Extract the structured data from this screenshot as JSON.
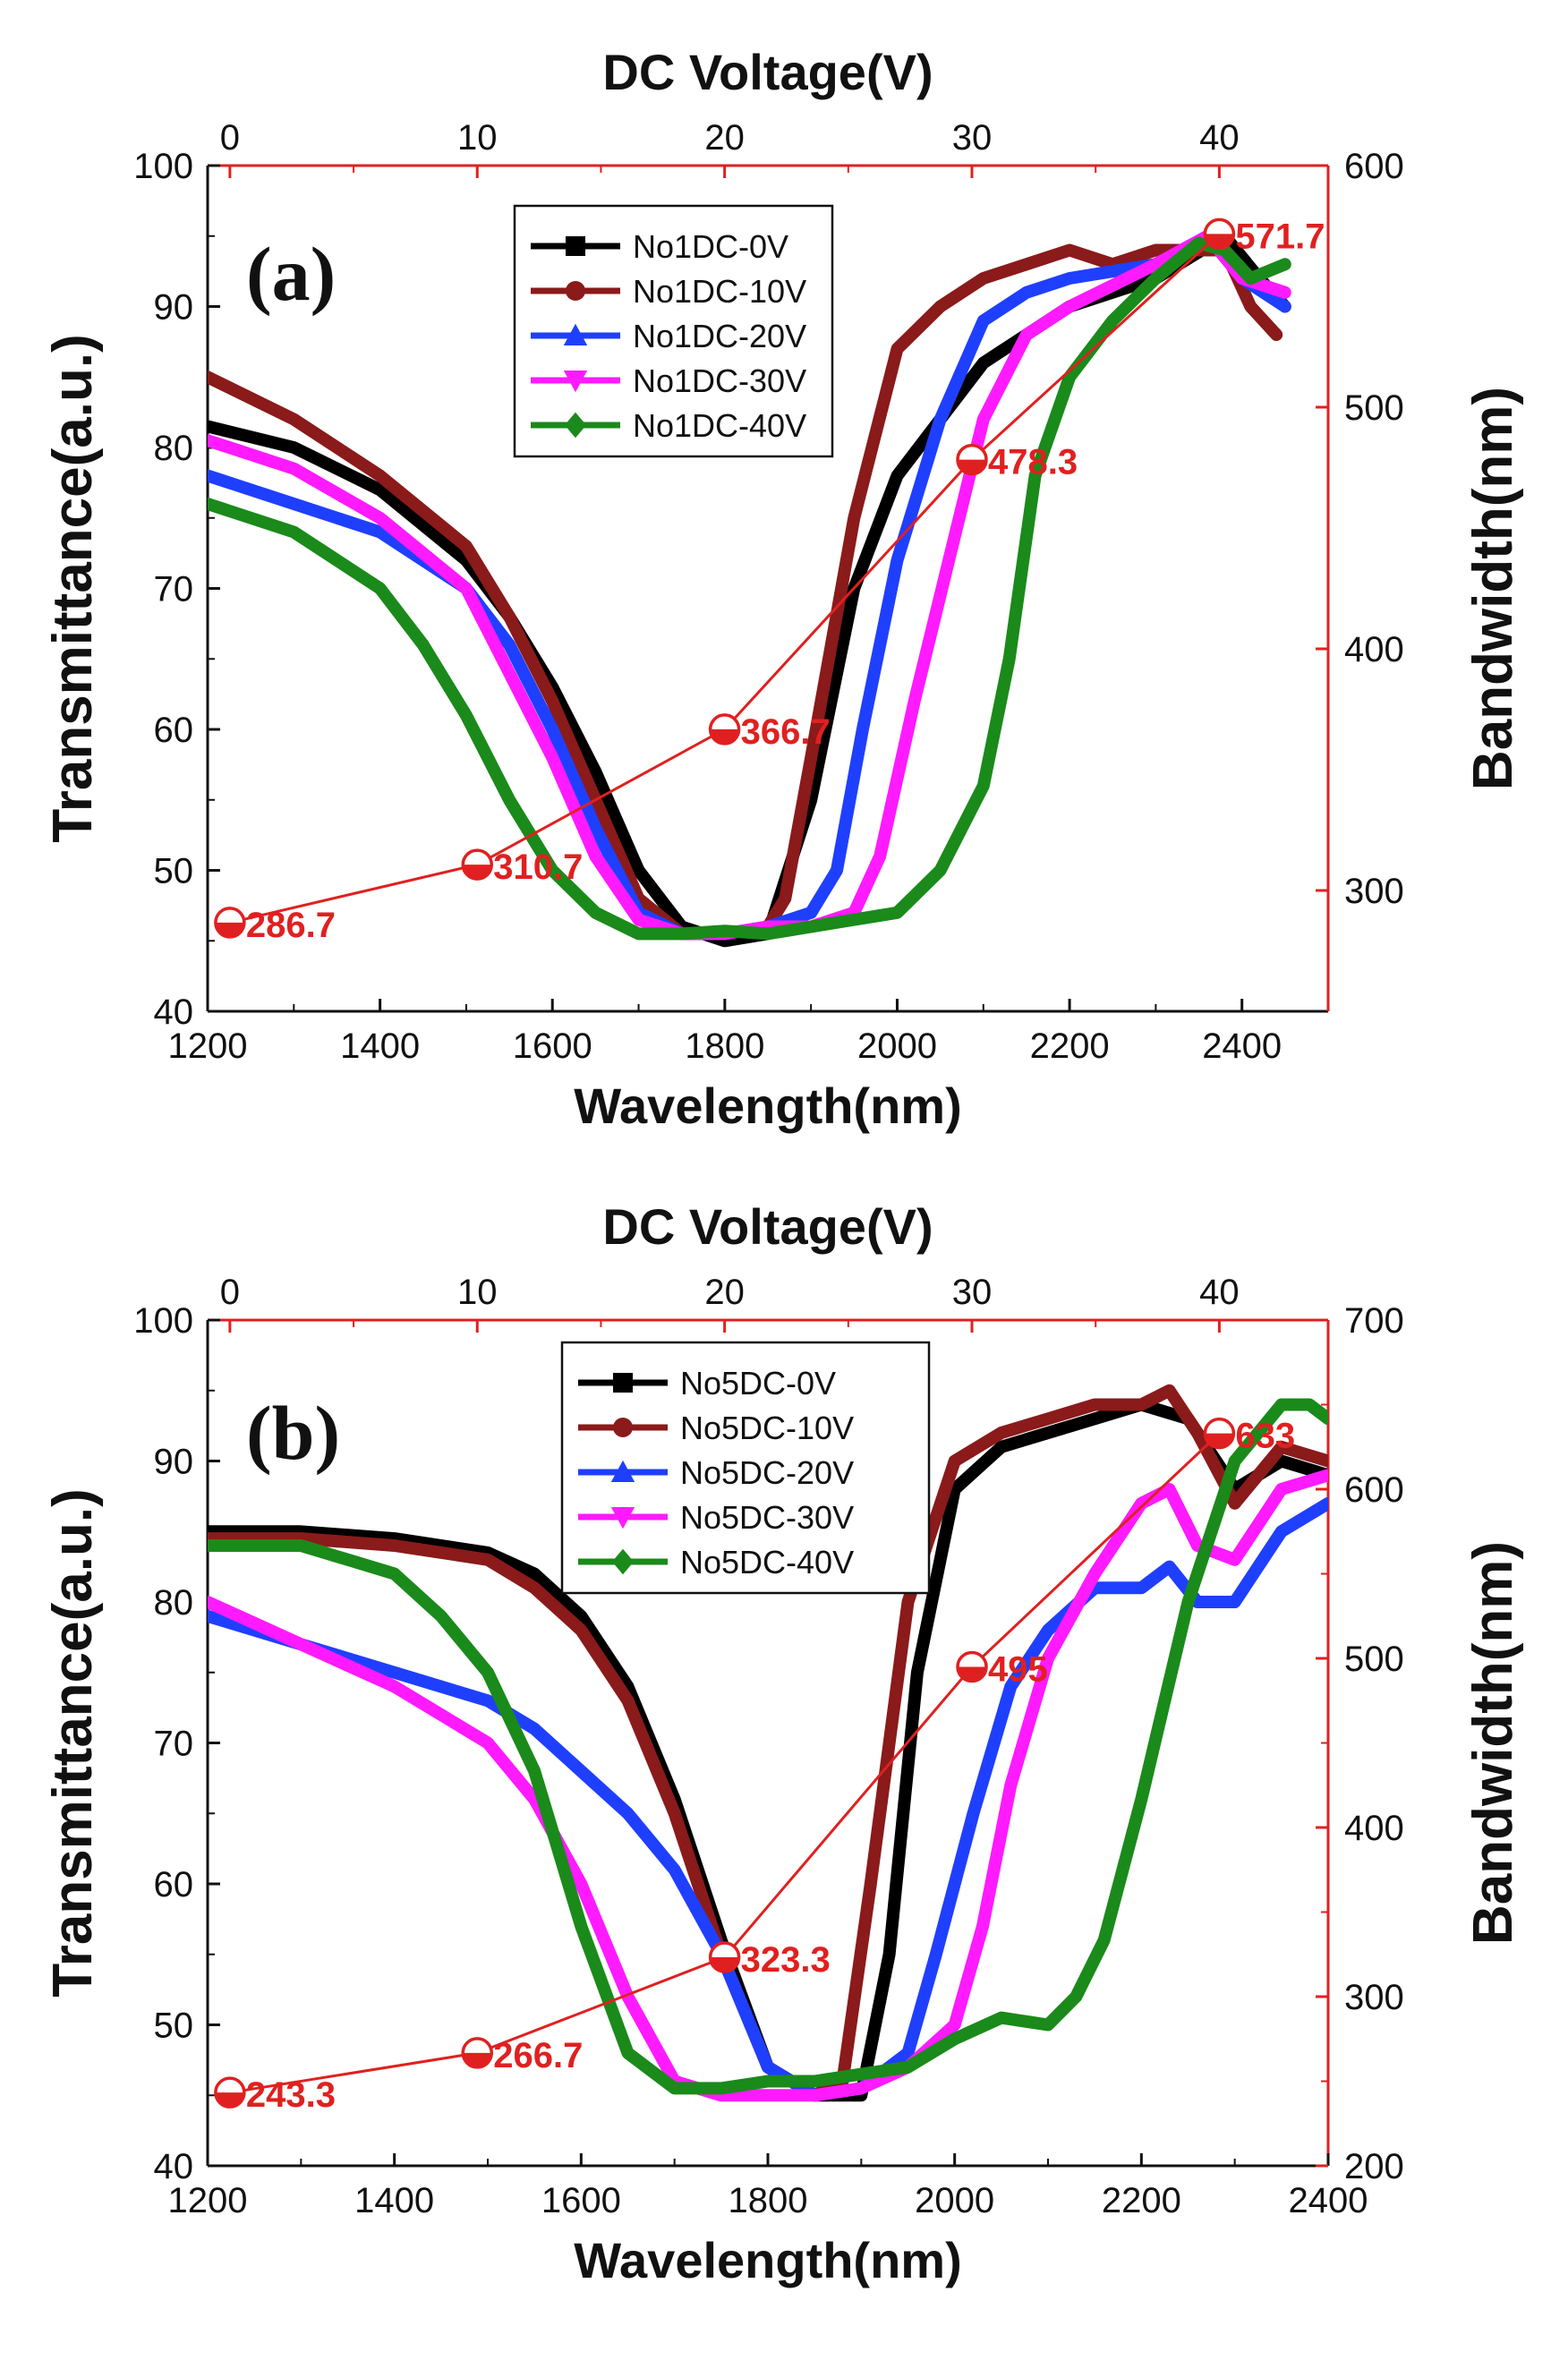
{
  "chart_data": [
    {
      "type": "line",
      "panel_label": "(a)",
      "xlabel": "Wavelength(nm)",
      "ylabel": "Transmittance(a.u.)",
      "x2label": "DC Voltage(V)",
      "y2label": "Bandwidth(nm)",
      "xlim": [
        1200,
        2500
      ],
      "ylim": [
        40,
        100
      ],
      "x2lim": [
        -0.9,
        44.4
      ],
      "y2lim": [
        250,
        600
      ],
      "xticks": [
        "1200",
        "1400",
        "1600",
        "1800",
        "2000",
        "2200",
        "2400"
      ],
      "yticks": [
        "40",
        "50",
        "60",
        "70",
        "80",
        "90",
        "100"
      ],
      "x2ticks": [
        "0",
        "10",
        "20",
        "30",
        "40"
      ],
      "y2ticks": [
        "300",
        "400",
        "500",
        "600"
      ],
      "series": [
        {
          "name": "No1DC-0V",
          "color": "#000000",
          "marker": "square",
          "x": [
            1200,
            1300,
            1400,
            1500,
            1550,
            1600,
            1650,
            1700,
            1750,
            1800,
            1850,
            1900,
            1950,
            2000,
            2100,
            2200,
            2300,
            2380,
            2420,
            2450
          ],
          "y": [
            81.5,
            80,
            77,
            72,
            68,
            63,
            57,
            50,
            46,
            45,
            45.5,
            55,
            70,
            78,
            86,
            90,
            92,
            95,
            92,
            90
          ]
        },
        {
          "name": "No1DC-10V",
          "color": "#8b1a1a",
          "marker": "circle",
          "x": [
            1200,
            1300,
            1400,
            1500,
            1550,
            1600,
            1650,
            1700,
            1750,
            1800,
            1850,
            1870,
            1900,
            1950,
            2000,
            2050,
            2100,
            2150,
            2200,
            2250,
            2300,
            2350,
            2380,
            2410,
            2440
          ],
          "y": [
            85,
            82,
            78,
            73,
            68,
            62,
            55,
            48,
            45.5,
            45.5,
            46,
            48,
            58,
            75,
            87,
            90,
            92,
            93,
            94,
            93,
            94,
            94,
            94,
            90,
            88
          ]
        },
        {
          "name": "No1DC-20V",
          "color": "#1f3fff",
          "marker": "triangle-up",
          "x": [
            1200,
            1300,
            1400,
            1500,
            1550,
            1600,
            1650,
            1700,
            1750,
            1800,
            1850,
            1900,
            1930,
            1960,
            2000,
            2050,
            2100,
            2150,
            2200,
            2300,
            2360,
            2400,
            2450
          ],
          "y": [
            78,
            76,
            74,
            70,
            66,
            60,
            53,
            47,
            45.5,
            45.5,
            46,
            47,
            50,
            60,
            72,
            82,
            89,
            91,
            92,
            93,
            95,
            92,
            90
          ]
        },
        {
          "name": "No1DC-30V",
          "color": "#ff1aff",
          "marker": "triangle-down",
          "x": [
            1200,
            1300,
            1400,
            1500,
            1550,
            1600,
            1650,
            1700,
            1750,
            1800,
            1850,
            1900,
            1950,
            1980,
            2020,
            2060,
            2100,
            2150,
            2200,
            2300,
            2360,
            2400,
            2450
          ],
          "y": [
            80.5,
            78.5,
            75,
            70,
            64,
            58,
            51,
            46.5,
            45.5,
            45.5,
            46,
            46,
            47,
            51,
            62,
            72,
            82,
            88,
            90,
            93,
            95,
            92,
            91
          ]
        },
        {
          "name": "No1DC-40V",
          "color": "#1a8a1a",
          "marker": "diamond",
          "x": [
            1200,
            1300,
            1400,
            1450,
            1500,
            1550,
            1600,
            1650,
            1700,
            1750,
            1800,
            1850,
            1900,
            1950,
            2000,
            2050,
            2100,
            2130,
            2160,
            2200,
            2250,
            2300,
            2350,
            2380,
            2410,
            2450
          ],
          "y": [
            76,
            74,
            70,
            66,
            61,
            55,
            50,
            47,
            45.5,
            45.5,
            45.7,
            45.5,
            46,
            46.5,
            47,
            50,
            56,
            65,
            78,
            85,
            89,
            92,
            94.5,
            94,
            92,
            93
          ]
        },
        {
          "name": "Bandwidth",
          "axis": "secondary",
          "color": "#e02020",
          "marker": "half-circle",
          "x": [
            0,
            10,
            20,
            30,
            40
          ],
          "y": [
            286.7,
            310.7,
            366.7,
            478.3,
            571.7
          ],
          "labels": [
            "286.7",
            "310.7",
            "366.7",
            "478.3",
            "571.7"
          ]
        }
      ]
    },
    {
      "type": "line",
      "panel_label": "(b)",
      "xlabel": "Wavelength(nm)",
      "ylabel": "Transmittance(a.u.)",
      "x2label": "DC Voltage(V)",
      "y2label": "Bandwidth(nm)",
      "xlim": [
        1200,
        2400
      ],
      "ylim": [
        40,
        100
      ],
      "x2lim": [
        -0.9,
        44.4
      ],
      "y2lim": [
        200,
        700
      ],
      "xticks": [
        "1200",
        "1400",
        "1600",
        "1800",
        "2000",
        "2200",
        "2400"
      ],
      "yticks": [
        "40",
        "50",
        "60",
        "70",
        "80",
        "90",
        "100"
      ],
      "x2ticks": [
        "0",
        "10",
        "20",
        "30",
        "40"
      ],
      "y2ticks": [
        "200",
        "300",
        "400",
        "500",
        "600",
        "700"
      ],
      "series": [
        {
          "name": "No5DC-0V",
          "color": "#000000",
          "marker": "square",
          "x": [
            1200,
            1300,
            1400,
            1500,
            1550,
            1600,
            1650,
            1700,
            1750,
            1800,
            1850,
            1900,
            1930,
            1960,
            2000,
            2050,
            2100,
            2150,
            2200,
            2250,
            2300,
            2350,
            2400
          ],
          "y": [
            85,
            85,
            84.5,
            83.5,
            82,
            79,
            74,
            66,
            56,
            47,
            45,
            45,
            55,
            75,
            88,
            91,
            92,
            93,
            94,
            93,
            88,
            90,
            89
          ]
        },
        {
          "name": "No5DC-10V",
          "color": "#8b1a1a",
          "marker": "circle",
          "x": [
            1200,
            1300,
            1400,
            1500,
            1550,
            1600,
            1650,
            1700,
            1750,
            1800,
            1850,
            1880,
            1910,
            1950,
            2000,
            2050,
            2100,
            2150,
            2200,
            2230,
            2260,
            2300,
            2350,
            2400
          ],
          "y": [
            84.5,
            84.5,
            84,
            83,
            81,
            78,
            73,
            65,
            55,
            47,
            45,
            46,
            60,
            80,
            90,
            92,
            93,
            94,
            94,
            95,
            92,
            87,
            91,
            90
          ]
        },
        {
          "name": "No5DC-20V",
          "color": "#1f3fff",
          "marker": "triangle-up",
          "x": [
            1200,
            1300,
            1400,
            1500,
            1550,
            1600,
            1650,
            1700,
            1750,
            1800,
            1850,
            1900,
            1950,
            1980,
            2020,
            2060,
            2100,
            2150,
            2200,
            2230,
            2260,
            2300,
            2350,
            2400
          ],
          "y": [
            79,
            77,
            75,
            73,
            71,
            68,
            65,
            61,
            55,
            47,
            45,
            45.5,
            48,
            55,
            65,
            74,
            78,
            81,
            81,
            82.5,
            80,
            80,
            85,
            87
          ]
        },
        {
          "name": "No5DC-30V",
          "color": "#ff1aff",
          "marker": "triangle-down",
          "x": [
            1200,
            1300,
            1400,
            1500,
            1550,
            1600,
            1650,
            1700,
            1750,
            1800,
            1850,
            1900,
            1950,
            2000,
            2030,
            2060,
            2100,
            2150,
            2200,
            2230,
            2260,
            2300,
            2350,
            2400
          ],
          "y": [
            80,
            77,
            74,
            70,
            66,
            60,
            52,
            46,
            45,
            45,
            45,
            45.5,
            47,
            50,
            57,
            67,
            76,
            82,
            87,
            88,
            84,
            83,
            88,
            89
          ]
        },
        {
          "name": "No5DC-40V",
          "color": "#1a8a1a",
          "marker": "diamond",
          "x": [
            1200,
            1300,
            1400,
            1450,
            1500,
            1550,
            1600,
            1650,
            1700,
            1750,
            1800,
            1850,
            1900,
            1950,
            2000,
            2050,
            2100,
            2130,
            2160,
            2200,
            2250,
            2300,
            2350,
            2380,
            2400
          ],
          "y": [
            84,
            84,
            82,
            79,
            75,
            68,
            57,
            48,
            45.5,
            45.5,
            46,
            46,
            46.5,
            47,
            49,
            50.5,
            50,
            52,
            56,
            66,
            80,
            90,
            94,
            94,
            93
          ]
        },
        {
          "name": "Bandwidth",
          "axis": "secondary",
          "color": "#e02020",
          "marker": "half-circle",
          "x": [
            0,
            10,
            20,
            30,
            40
          ],
          "y": [
            243.3,
            266.7,
            323.3,
            495,
            633
          ],
          "labels": [
            "243.3",
            "266.7",
            "323.3",
            "495",
            "633"
          ]
        }
      ]
    }
  ]
}
